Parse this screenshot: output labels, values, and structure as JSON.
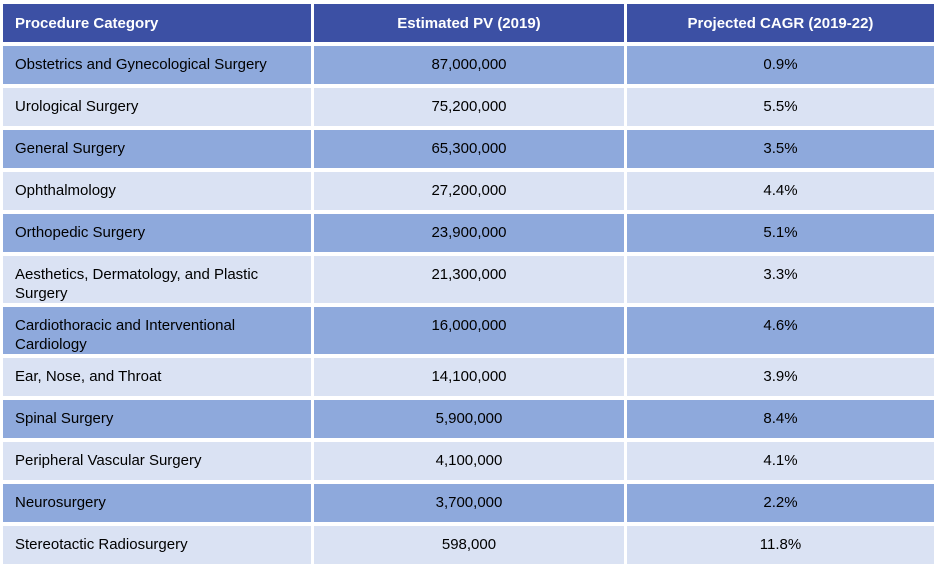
{
  "colors": {
    "header_bg": "#3c50a4",
    "header_text": "#ffffff",
    "row_medium": "#8ea9dc",
    "row_light": "#dae2f3",
    "gap": "#ffffff",
    "body_text": "#000000"
  },
  "table": {
    "columns": [
      {
        "label": "Procedure Category",
        "align": "left"
      },
      {
        "label": "Estimated PV (2019)",
        "align": "center"
      },
      {
        "label": "Projected CAGR (2019-22)",
        "align": "center"
      }
    ],
    "rows": [
      {
        "category": "Obstetrics and Gynecological Surgery",
        "pv": "87,000,000",
        "cagr": "0.9%"
      },
      {
        "category": "Urological Surgery",
        "pv": "75,200,000",
        "cagr": "5.5%"
      },
      {
        "category": "General Surgery",
        "pv": "65,300,000",
        "cagr": "3.5%"
      },
      {
        "category": "Ophthalmology",
        "pv": "27,200,000",
        "cagr": "4.4%"
      },
      {
        "category": "Orthopedic Surgery",
        "pv": "23,900,000",
        "cagr": "5.1%"
      },
      {
        "category": "Aesthetics, Dermatology, and Plastic Surgery",
        "pv": "21,300,000",
        "cagr": "3.3%"
      },
      {
        "category": "Cardiothoracic and Interventional Cardiology",
        "pv": "16,000,000",
        "cagr": "4.6%"
      },
      {
        "category": "Ear, Nose, and Throat",
        "pv": "14,100,000",
        "cagr": "3.9%"
      },
      {
        "category": "Spinal Surgery",
        "pv": "5,900,000",
        "cagr": "8.4%"
      },
      {
        "category": "Peripheral Vascular Surgery",
        "pv": "4,100,000",
        "cagr": "4.1%"
      },
      {
        "category": "Neurosurgery",
        "pv": "3,700,000",
        "cagr": "2.2%"
      },
      {
        "category": "Stereotactic Radiosurgery",
        "pv": "598,000",
        "cagr": "11.8%"
      }
    ]
  },
  "chart_data": {
    "type": "table",
    "title": "",
    "columns": [
      "Procedure Category",
      "Estimated PV (2019)",
      "Projected CAGR (2019-22)"
    ],
    "rows": [
      [
        "Obstetrics and Gynecological Surgery",
        87000000,
        "0.9%"
      ],
      [
        "Urological Surgery",
        75200000,
        "5.5%"
      ],
      [
        "General Surgery",
        65300000,
        "3.5%"
      ],
      [
        "Ophthalmology",
        27200000,
        "4.4%"
      ],
      [
        "Orthopedic Surgery",
        23900000,
        "5.1%"
      ],
      [
        "Aesthetics, Dermatology, and Plastic Surgery",
        21300000,
        "3.3%"
      ],
      [
        "Cardiothoracic and Interventional Cardiology",
        16000000,
        "4.6%"
      ],
      [
        "Ear, Nose, and Throat",
        14100000,
        "3.9%"
      ],
      [
        "Spinal Surgery",
        5900000,
        "8.4%"
      ],
      [
        "Peripheral Vascular Surgery",
        4100000,
        "4.1%"
      ],
      [
        "Neurosurgery",
        3700000,
        "2.2%"
      ],
      [
        "Stereotactic Radiosurgery",
        598000,
        "11.8%"
      ]
    ]
  }
}
